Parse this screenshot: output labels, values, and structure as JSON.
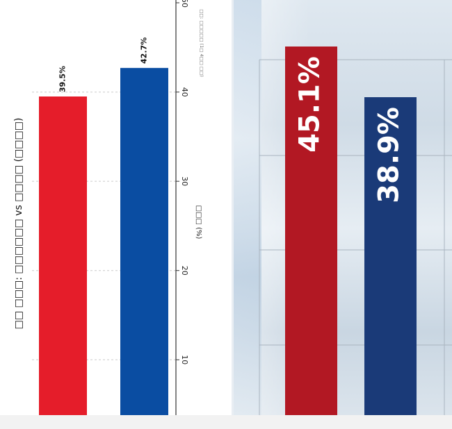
{
  "chart_data": [
    {
      "type": "bar",
      "title": "□□ □□□: □□□□□□ vs □□□□ (□□□□)",
      "source_note": "□□: □□□□□ (1□ 4□□ □□)",
      "ylabel": "□□□ (%)",
      "ylim": [
        3.8,
        50
      ],
      "yticks": [
        10,
        20,
        30,
        40,
        50
      ],
      "grid": true,
      "series": [
        {
          "values": [
            39.5,
            42.7
          ],
          "colors": [
            "#e51d2a",
            "#0a4da2"
          ]
        }
      ],
      "data_labels": [
        "39.5%",
        "42.7%"
      ]
    },
    {
      "type": "bar",
      "series": [
        {
          "values": [
            45.1,
            38.9
          ],
          "colors": [
            "#b21823",
            "#1a3a78"
          ]
        }
      ],
      "data_labels": [
        "45.1%",
        "38.9%"
      ]
    }
  ],
  "colors": {
    "red": "#e51d2a",
    "blue": "#0a4da2",
    "dark_red": "#b21823",
    "navy": "#1a3a78"
  }
}
